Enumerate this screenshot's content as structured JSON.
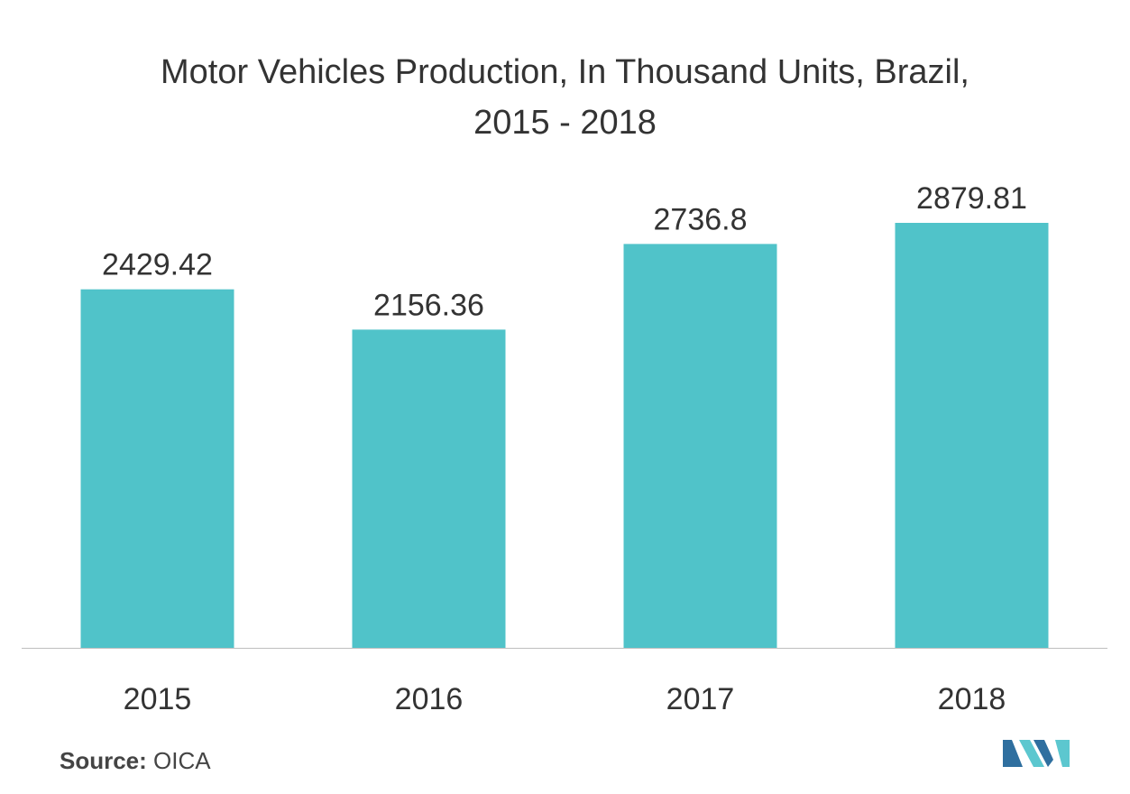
{
  "title_line1": "Motor Vehicles Production, In Thousand Units, Brazil,",
  "title_line2": "2015 - 2018",
  "source": {
    "label": "Source:",
    "value": "OICA"
  },
  "colors": {
    "bar": "#50c3c9",
    "axis": "#bfbfbf",
    "text": "#333333",
    "logo_dark": "#2f6f9f",
    "logo_light": "#5cc7cf"
  },
  "chart_data": {
    "type": "bar",
    "title": "Motor Vehicles Production, In Thousand Units, Brazil, 2015 - 2018",
    "categories": [
      "2015",
      "2016",
      "2017",
      "2018"
    ],
    "values": [
      2429.42,
      2156.36,
      2736.8,
      2879.81
    ],
    "value_labels": [
      "2429.42",
      "2156.36",
      "2736.8",
      "2879.81"
    ],
    "xlabel": "",
    "ylabel": "",
    "ylim": [
      0,
      2879.81
    ],
    "grid": false,
    "legend": "none"
  }
}
